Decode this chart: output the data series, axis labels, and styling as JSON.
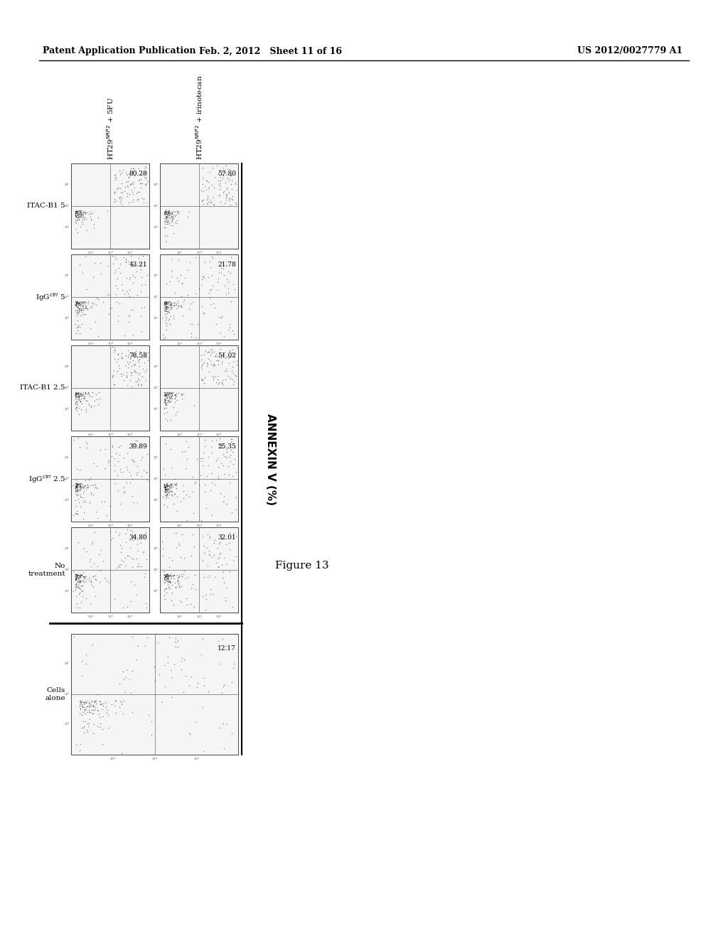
{
  "page_header_left": "Patent Application Publication",
  "page_header_middle": "Feb. 2, 2012   Sheet 11 of 16",
  "page_header_right": "US 2012/0027779 A1",
  "figure_label": "Figure 13",
  "y_axis_label": "ANNEXIN V (%)",
  "col_labels": [
    "Cells\nalone",
    "No\ntreatment",
    "IgG$^{ctrl}$ 2.5",
    "ITAC-B1 2.5",
    "IgG$^{ctrl}$ 5",
    "ITAC-B1 5"
  ],
  "row_labels_top": "HT29$^{NRP2}$ + 5FU",
  "row_labels_bot": "HT29$^{NRP2}$ + irinotecan",
  "values_top": [
    null,
    "34.80",
    "39.89",
    "78.58",
    "43.21",
    "80.28"
  ],
  "values_bot": [
    "12.17",
    "32.01",
    "25.35",
    "51.02",
    "21.78",
    "57.80"
  ],
  "background_color": "#ffffff",
  "text_color": "#000000",
  "fig_width": 10.24,
  "fig_height": 13.2,
  "dpi": 100
}
